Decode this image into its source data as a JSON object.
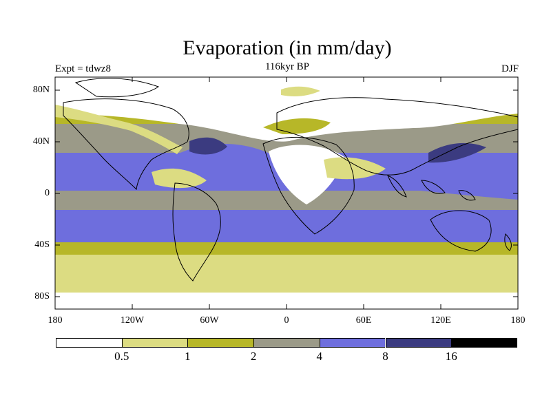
{
  "title": "Evaporation (in mm/day)",
  "expt_label": "Expt = tdwz8",
  "period_label": "116kyr BP",
  "season_label": "DJF",
  "map": {
    "projection": "cylindrical equidistant",
    "lat_ticks": [
      "80N",
      "40N",
      "0",
      "40S",
      "80S"
    ],
    "lon_ticks": [
      "180",
      "120W",
      "60W",
      "0",
      "60E",
      "120E",
      "180"
    ]
  },
  "colorbar": {
    "labels": [
      "0.5",
      "1",
      "2",
      "4",
      "8",
      "16"
    ],
    "colors": [
      "#ffffff",
      "#dcdc82",
      "#b7b728",
      "#9b9a88",
      "#6e6edd",
      "#3b3b80",
      "#000000"
    ]
  }
}
